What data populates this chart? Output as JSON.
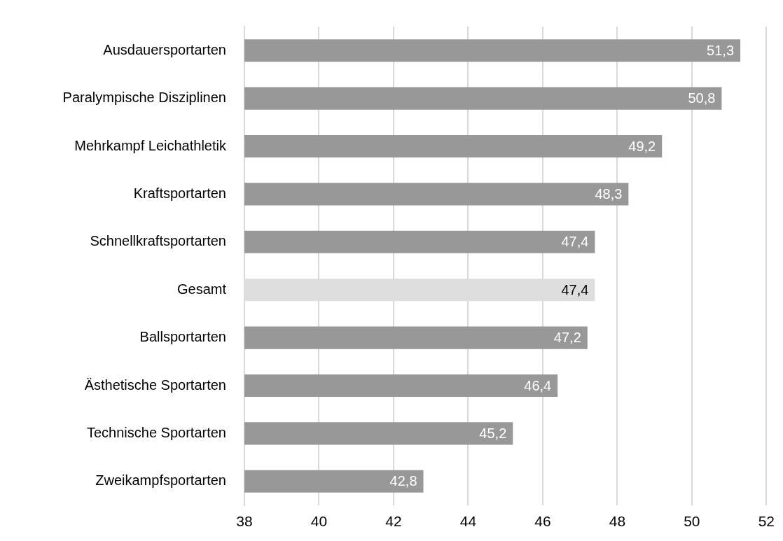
{
  "chart_data": {
    "type": "bar",
    "orientation": "horizontal",
    "categories": [
      "Ausdauersportarten",
      "Paralympische Disziplinen",
      "Mehrkampf Leichathletik",
      "Kraftsportarten",
      "Schnellkraftsportarten",
      "Gesamt",
      "Ballsportarten",
      "Ästhetische Sportarten",
      "Technische Sportarten",
      "Zweikampfsportarten"
    ],
    "values": [
      51.3,
      50.8,
      49.2,
      48.3,
      47.4,
      47.4,
      47.2,
      46.4,
      45.2,
      42.8
    ],
    "colors": [
      "#989898",
      "#989898",
      "#989898",
      "#989898",
      "#989898",
      "#dedede",
      "#989898",
      "#989898",
      "#989898",
      "#989898"
    ],
    "value_labels": [
      "51,3",
      "50,8",
      "49,2",
      "48,3",
      "47,4",
      "47,4",
      "47,2",
      "46,4",
      "45,2",
      "42,8"
    ],
    "xlim": [
      38,
      52
    ],
    "xticks": [
      38,
      40,
      42,
      44,
      46,
      48,
      50,
      52
    ],
    "grid": "x"
  }
}
